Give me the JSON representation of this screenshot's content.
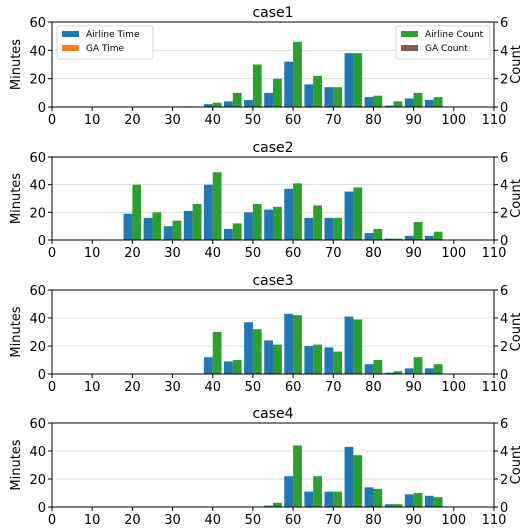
{
  "colors": {
    "airline_time": "#1f77b4",
    "ga_time": "#ff7f0e",
    "airline_count": "#2ca02c",
    "ga_count": "#8c564b",
    "grid": "#d9d9d9"
  },
  "chart_data": [
    {
      "type": "bar",
      "title": "case1",
      "ylabel": "Minutes",
      "y2label": "Count",
      "xlim": [
        0,
        110
      ],
      "ylim": [
        0,
        60
      ],
      "y2lim": [
        0,
        6
      ],
      "xticks": [
        0,
        10,
        20,
        30,
        40,
        50,
        60,
        70,
        80,
        90,
        100,
        110
      ],
      "yticks": [
        0,
        20,
        40,
        60
      ],
      "y2ticks": [
        0,
        2,
        4,
        6
      ],
      "grid": "horizontal",
      "legend": [
        {
          "name": "Airline Time",
          "placement": "upper-left"
        },
        {
          "name": "GA Time",
          "placement": "upper-left"
        },
        {
          "name": "Airline Count",
          "placement": "upper-right"
        },
        {
          "name": "GA Count",
          "placement": "upper-right"
        }
      ],
      "bins": [
        35,
        40,
        45,
        50,
        55,
        60,
        65,
        70,
        75,
        80,
        85,
        90,
        95
      ],
      "airline_time": [
        0.5,
        2,
        4,
        5,
        10,
        32,
        16,
        14,
        38,
        7,
        1,
        6,
        5
      ],
      "airline_count": [
        0,
        0.3,
        1,
        3,
        2,
        4.6,
        2.2,
        1.4,
        3.8,
        0.8,
        0.4,
        1,
        0.7
      ]
    },
    {
      "type": "bar",
      "title": "case2",
      "ylabel": "Minutes",
      "y2label": "Count",
      "xlim": [
        0,
        110
      ],
      "ylim": [
        0,
        60
      ],
      "y2lim": [
        0,
        6
      ],
      "xticks": [
        0,
        10,
        20,
        30,
        40,
        50,
        60,
        70,
        80,
        90,
        100,
        110
      ],
      "yticks": [
        0,
        20,
        40,
        60
      ],
      "y2ticks": [
        0,
        2,
        4,
        6
      ],
      "grid": "horizontal",
      "bins": [
        20,
        25,
        30,
        35,
        40,
        45,
        50,
        55,
        60,
        65,
        70,
        75,
        80,
        85,
        90,
        95
      ],
      "airline_time": [
        19,
        16,
        10,
        21,
        40,
        8,
        20,
        22,
        37,
        16,
        16,
        35,
        5,
        1,
        3,
        3
      ],
      "airline_count": [
        4,
        2,
        1.4,
        2.6,
        4.9,
        1.2,
        2.6,
        2.4,
        4.1,
        2.5,
        1.6,
        3.8,
        0.8,
        0.1,
        1.3,
        0.6
      ]
    },
    {
      "type": "bar",
      "title": "case3",
      "ylabel": "Minutes",
      "y2label": "Count",
      "xlim": [
        0,
        110
      ],
      "ylim": [
        0,
        60
      ],
      "y2lim": [
        0,
        6
      ],
      "xticks": [
        0,
        10,
        20,
        30,
        40,
        50,
        60,
        70,
        80,
        90,
        100,
        110
      ],
      "yticks": [
        0,
        20,
        40,
        60
      ],
      "y2ticks": [
        0,
        2,
        4,
        6
      ],
      "grid": "horizontal",
      "bins": [
        40,
        45,
        50,
        55,
        60,
        65,
        70,
        75,
        80,
        85,
        90,
        95
      ],
      "airline_time": [
        12,
        9,
        37,
        24,
        43,
        20,
        19,
        41,
        7,
        1,
        4,
        4
      ],
      "airline_count": [
        3,
        1,
        3.2,
        2.1,
        4.2,
        2.1,
        1.6,
        3.9,
        1,
        0.2,
        1.2,
        0.7
      ]
    },
    {
      "type": "bar",
      "title": "case4",
      "ylabel": "Minutes",
      "y2label": "Count",
      "xlim": [
        0,
        110
      ],
      "ylim": [
        0,
        60
      ],
      "y2lim": [
        0,
        6
      ],
      "xticks": [
        0,
        10,
        20,
        30,
        40,
        50,
        60,
        70,
        80,
        90,
        100,
        110
      ],
      "yticks": [
        0,
        20,
        40,
        60
      ],
      "y2ticks": [
        0,
        2,
        4,
        6
      ],
      "grid": "horizontal",
      "bins": [
        55,
        60,
        65,
        70,
        75,
        80,
        85,
        90,
        95
      ],
      "airline_time": [
        1,
        22,
        11,
        11,
        43,
        14,
        2,
        9,
        8
      ],
      "airline_count": [
        0.3,
        4.4,
        2.2,
        1.1,
        3.7,
        1.3,
        0.2,
        1,
        0.7
      ]
    }
  ]
}
